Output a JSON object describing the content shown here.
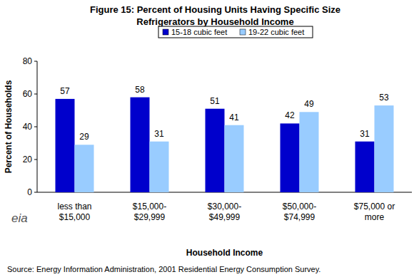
{
  "chart_data": {
    "type": "bar",
    "title": "Figure 15:  Percent of Housing Units Having Specific Size\nRefrigerators by Household Income",
    "x_label": "Household Income",
    "y_label": "Percent of Households",
    "categories": [
      "less than\n$15,000",
      "$15,000-\n$29,999",
      "$30,000-\n$49,999",
      "$50,000-\n$74,999",
      "$75,000 or\nmore"
    ],
    "series": [
      {
        "name": "15-18 cubic feet",
        "color": "#0000cc",
        "values": [
          57,
          58,
          51,
          42,
          31
        ]
      },
      {
        "name": "19-22 cubic feet",
        "color": "#99ccff",
        "values": [
          29,
          31,
          41,
          49,
          53
        ]
      }
    ],
    "ylim": [
      0,
      80
    ],
    "yticks": [
      0,
      20,
      40,
      60,
      80
    ],
    "grid": false,
    "legend": "top",
    "data_labels": true,
    "source": "Source:  Energy Information Administration, 2001 Residential Energy Consumption Survey.",
    "logo": "eia"
  }
}
